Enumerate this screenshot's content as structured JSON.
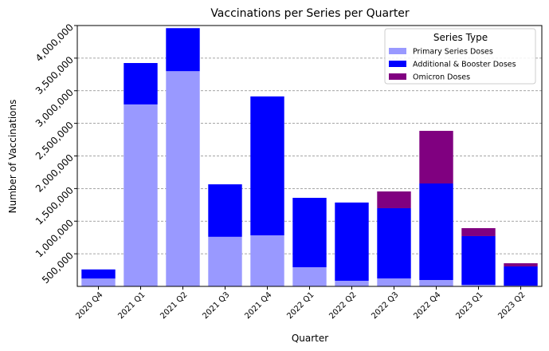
{
  "chart_data": {
    "type": "stacked_bar",
    "title": "Vaccinations per Series per Quarter",
    "x_label": "Quarter",
    "y_label": "Number of Vaccinations",
    "categories": [
      "2020 Q4",
      "2021 Q1",
      "2021 Q2",
      "2021 Q3",
      "2021 Q4",
      "2022 Q1",
      "2022 Q2",
      "2022 Q3",
      "2022 Q4",
      "2023 Q1",
      "2023 Q2"
    ],
    "series": [
      {
        "name": "Primary Series Doses",
        "color": "#9999ff",
        "values": [
          120000,
          2790000,
          3300000,
          760000,
          783000,
          294000,
          86000,
          122000,
          98000,
          24000,
          12000
        ]
      },
      {
        "name": "Additional & Booster Doses",
        "color": "#0000ff",
        "values": [
          140000,
          635000,
          660000,
          805000,
          2130000,
          1064000,
          1200000,
          1077000,
          1480000,
          747000,
          294000
        ]
      },
      {
        "name": "Omicron Doses",
        "color": "#800080",
        "values": [
          0,
          0,
          0,
          0,
          0,
          0,
          0,
          257000,
          807000,
          122000,
          49000
        ]
      }
    ],
    "ylim": [
      0,
      4000000
    ],
    "yticks": [
      {
        "value": 500000,
        "label": "500,000"
      },
      {
        "value": 1000000,
        "label": "1,000,000"
      },
      {
        "value": 1500000,
        "label": "1,500,000"
      },
      {
        "value": 2000000,
        "label": "2,000,000"
      },
      {
        "value": 2500000,
        "label": "2,500,000"
      },
      {
        "value": 3000000,
        "label": "3,000,000"
      },
      {
        "value": 3500000,
        "label": "3,500,000"
      },
      {
        "value": 4000000,
        "label": "4,000,000"
      }
    ],
    "grid": true,
    "legend_title": "Series Type",
    "legend_position": "upper-right"
  }
}
